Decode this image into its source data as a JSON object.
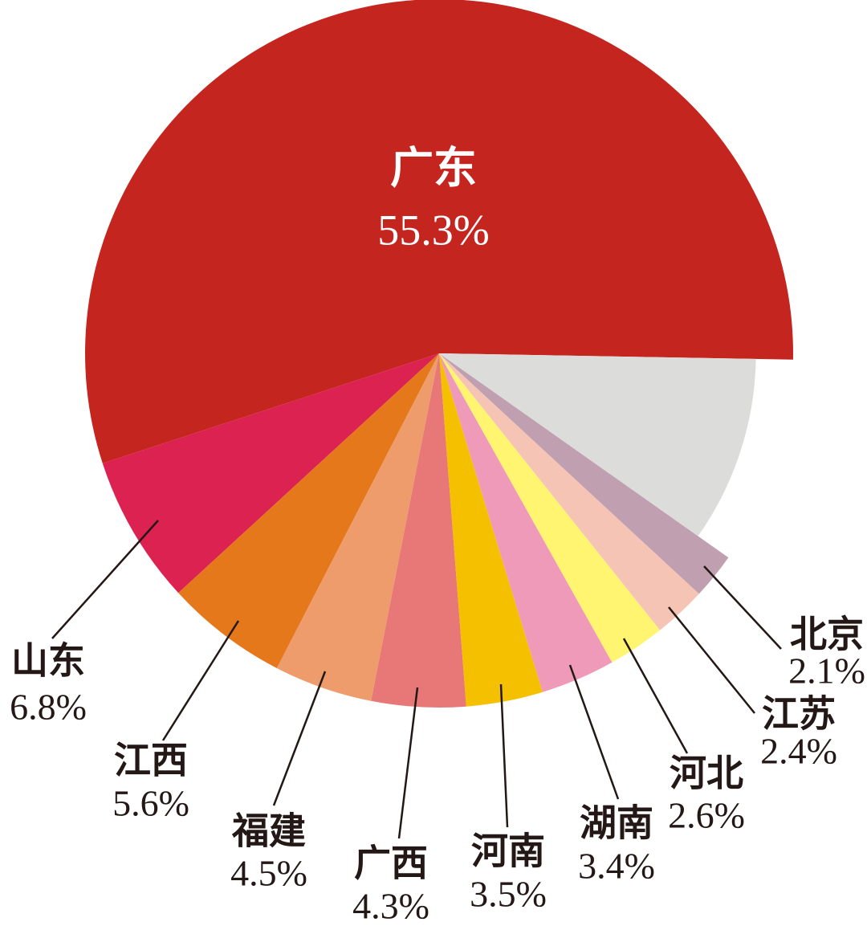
{
  "chart_data": {
    "type": "pie",
    "categories": [
      "广东",
      "山东",
      "江西",
      "福建",
      "广西",
      "河南",
      "湖南",
      "河北",
      "江苏",
      "北京",
      null
    ],
    "values": [
      55.3,
      6.8,
      5.6,
      4.5,
      4.3,
      3.5,
      3.4,
      2.6,
      2.4,
      2.1,
      9.5
    ],
    "value_labels": [
      "55.3%",
      "6.8%",
      "5.6%",
      "4.5%",
      "4.3%",
      "3.5%",
      "3.4%",
      "2.6%",
      "2.4%",
      "2.1%",
      null
    ],
    "colors": [
      "#c4261f",
      "#dc2250",
      "#e5781a",
      "#ee9c6c",
      "#e87878",
      "#f5c000",
      "#f09aba",
      "#fff570",
      "#f5c4b4",
      "#c0a0b0",
      "#dcdcda"
    ]
  }
}
